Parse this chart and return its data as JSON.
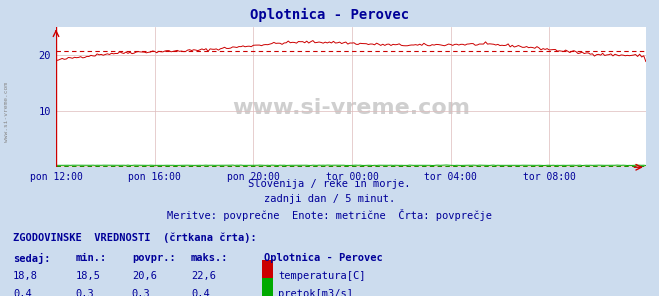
{
  "title": "Oplotnica - Perovec",
  "title_color": "#000099",
  "bg_color": "#ccdcee",
  "plot_bg_color": "#ffffff",
  "grid_color": "#ddbbbb",
  "xlabel_ticks": [
    "pon 12:00",
    "pon 16:00",
    "pon 20:00",
    "tor 00:00",
    "tor 04:00",
    "tor 08:00"
  ],
  "yticks": [
    10,
    20
  ],
  "ylim": [
    0,
    25
  ],
  "xlim": [
    0,
    287
  ],
  "temp_color": "#cc0000",
  "flow_color": "#00aa00",
  "avg_temp_value": 20.6,
  "avg_flow_value": 0.3,
  "watermark": "www.si-vreme.com",
  "subtitle1": "Slovenija / reke in morje.",
  "subtitle2": "zadnji dan / 5 minut.",
  "subtitle3": "Meritve: povprečne  Enote: metrične  Črta: povprečje",
  "footer_title": "ZGODOVINSKE  VREDNOSTI  (črtkana črta):",
  "col_sedaj": "sedaj:",
  "col_min": "min.:",
  "col_povpr": "povpr.:",
  "col_maks": "maks.:",
  "legend_title": "Oplotnica - Perovec",
  "temp_sedaj": "18,8",
  "temp_min": "18,5",
  "temp_povpr": "20,6",
  "temp_maks": "22,6",
  "temp_label": "temperatura[C]",
  "flow_sedaj": "0,4",
  "flow_min": "0,3",
  "flow_povpr": "0,3",
  "flow_maks": "0,4",
  "flow_label": "pretok[m3/s]",
  "text_color": "#000099",
  "footer_color": "#000099",
  "axis_color": "#cc0000",
  "figsize": [
    6.59,
    2.96
  ],
  "dpi": 100
}
